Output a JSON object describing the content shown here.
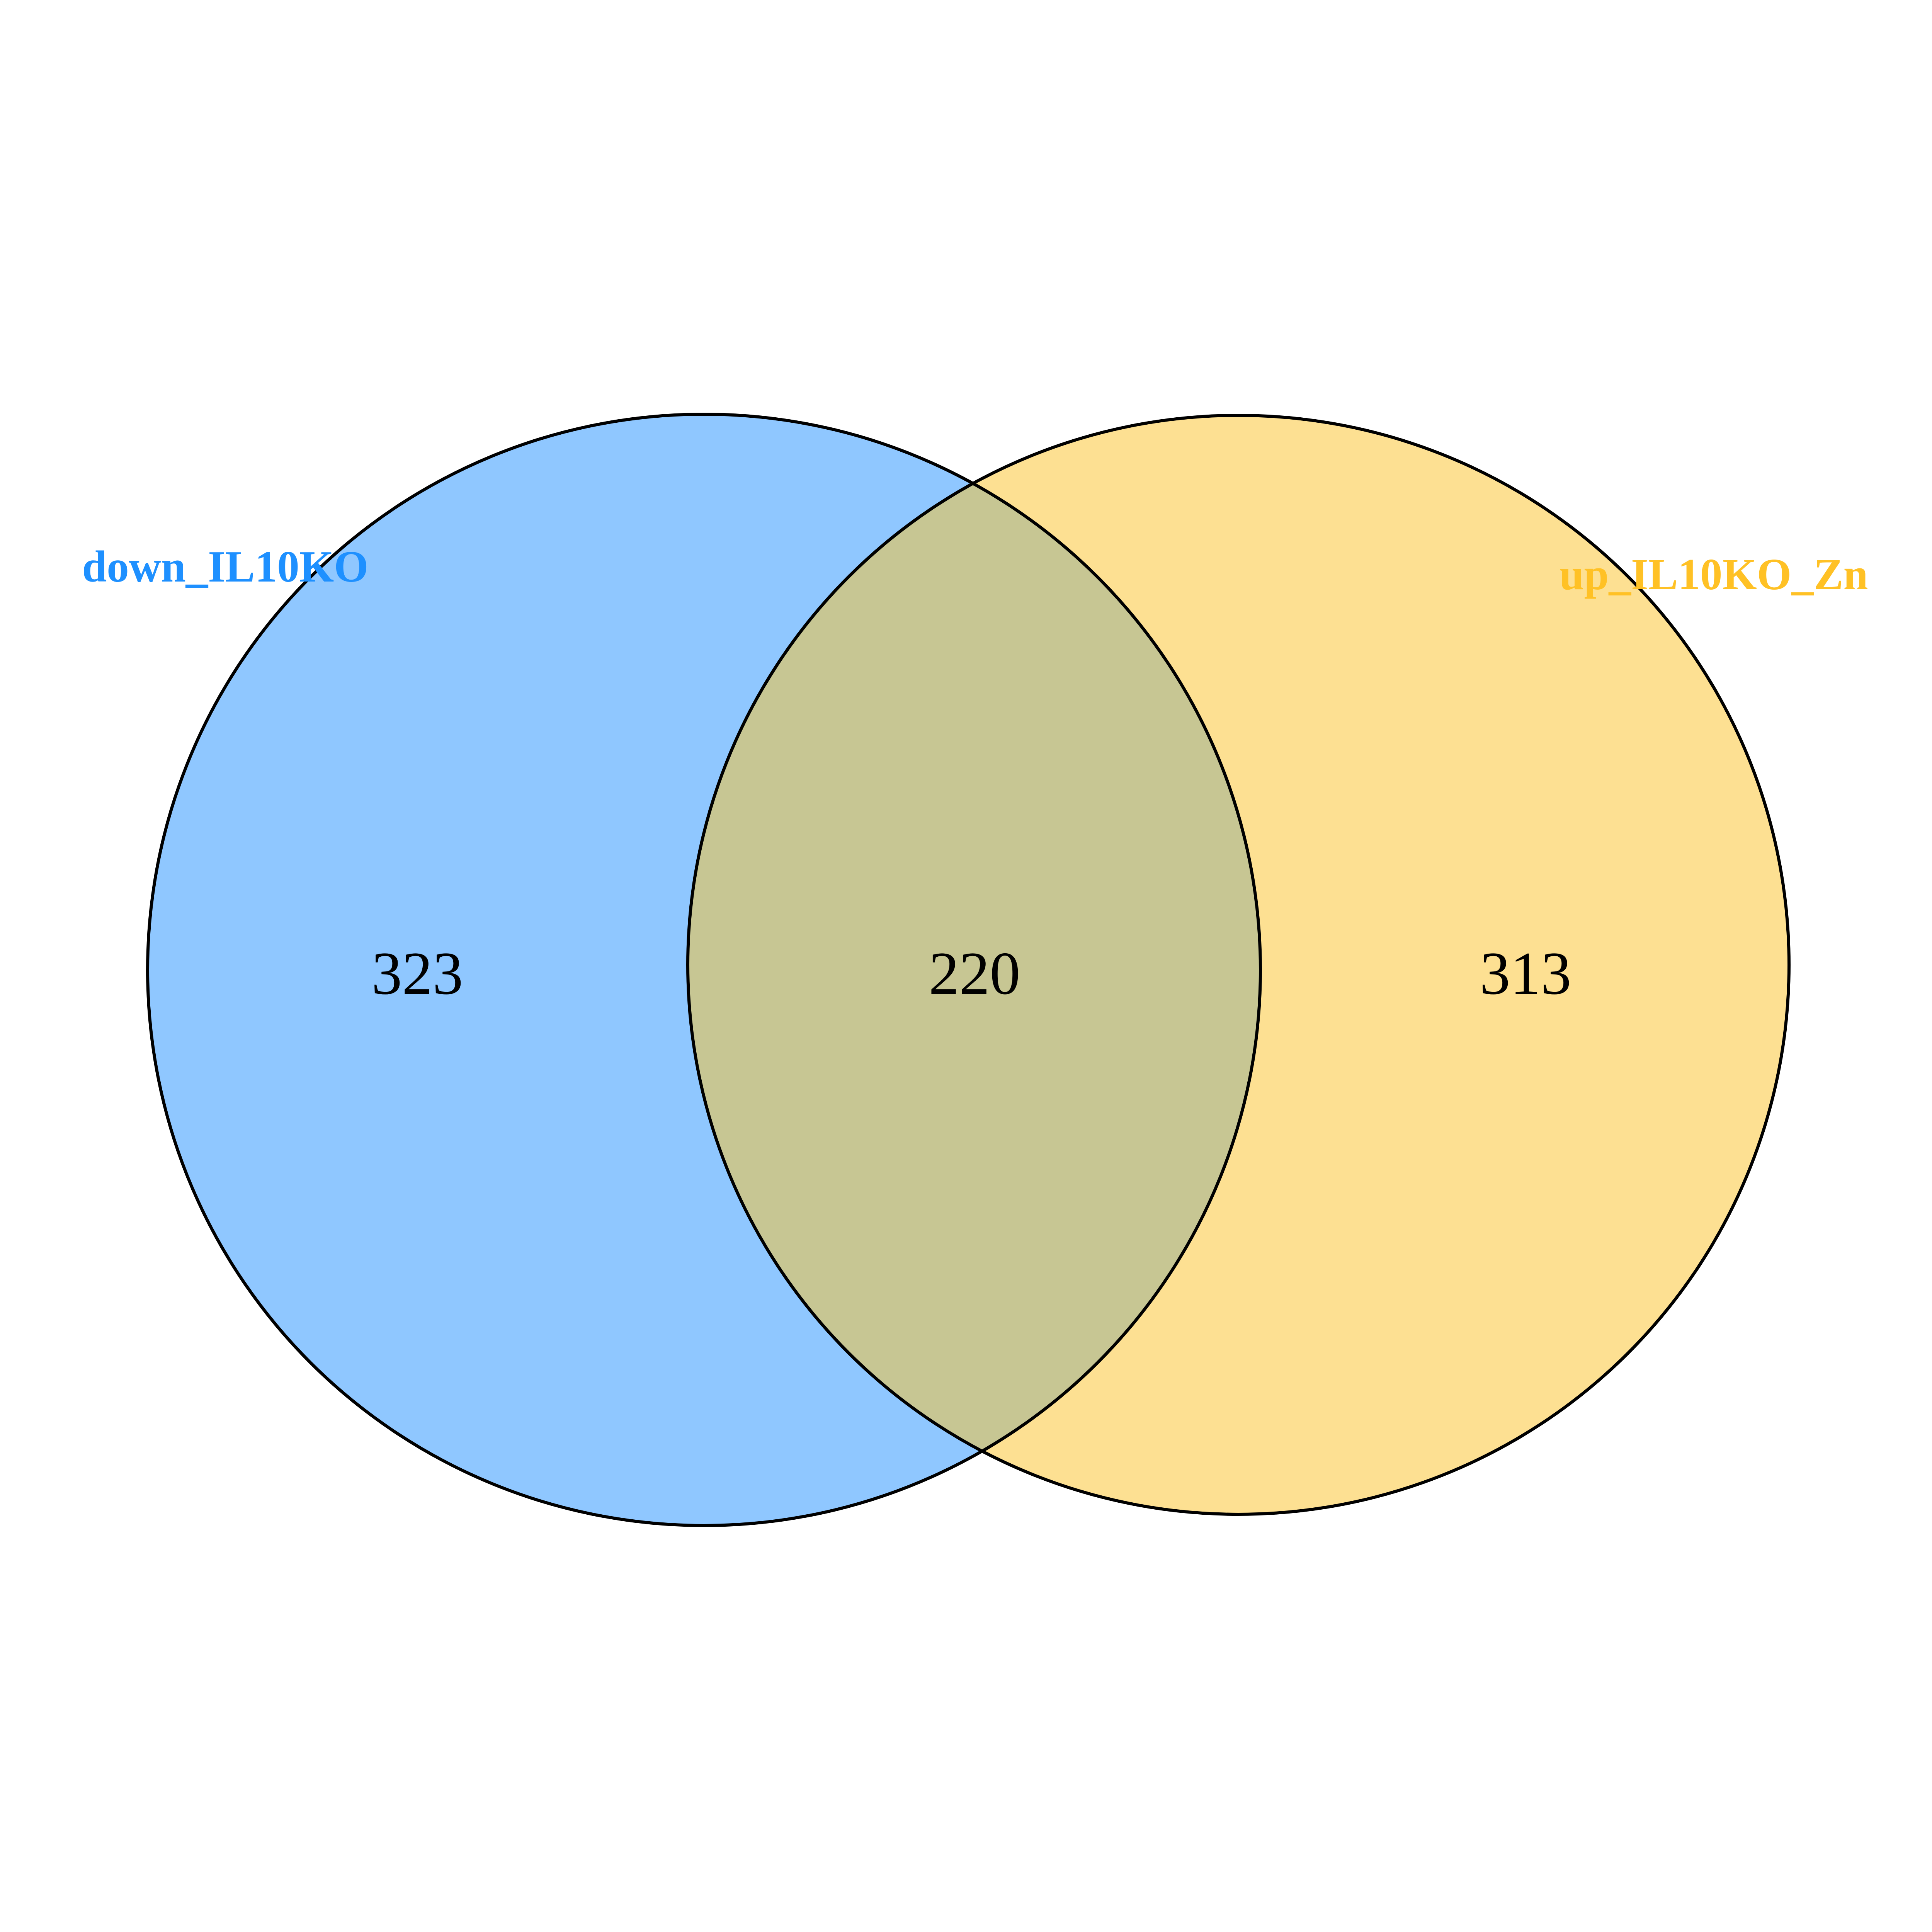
{
  "venn": {
    "sets": [
      {
        "name": "down_IL10KO",
        "color": "#1e90ff",
        "fill": "#8fc7ff",
        "only_count": "323"
      },
      {
        "name": "up_IL10KO_Zn",
        "color": "#ffc125",
        "fill": "#fde092",
        "only_count": "313"
      }
    ],
    "intersection": {
      "count": "220",
      "fill": "#c7c693"
    },
    "outline_color": "#000000"
  }
}
